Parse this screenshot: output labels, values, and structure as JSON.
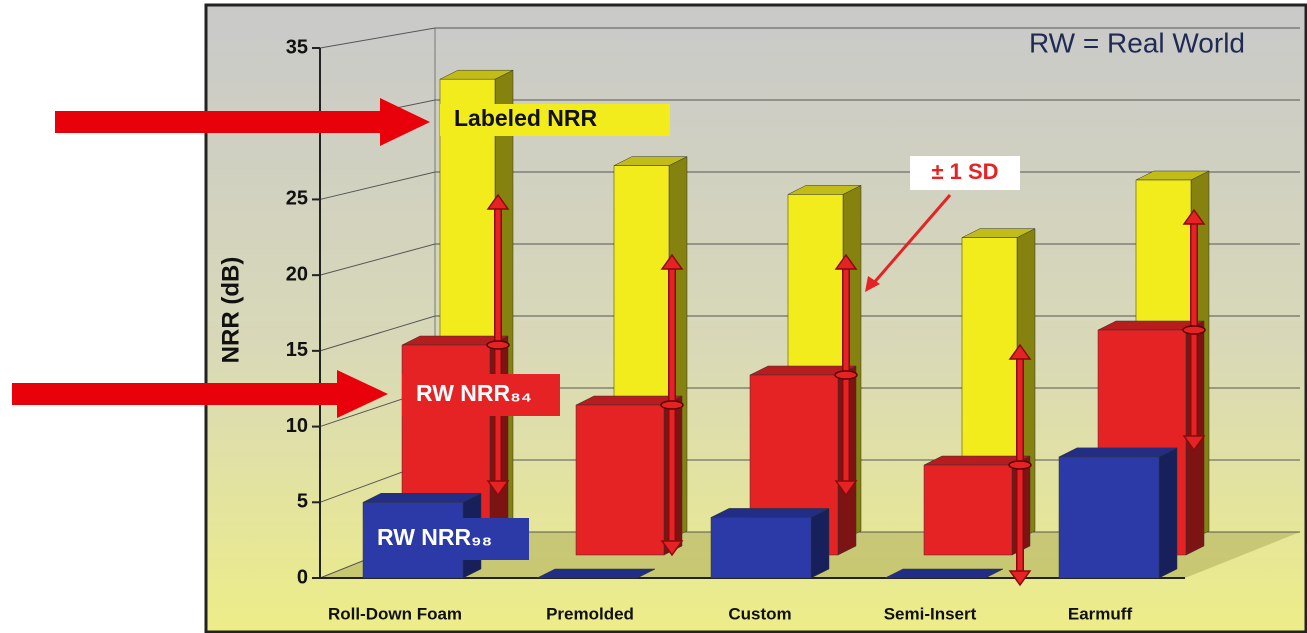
{
  "chart_data": {
    "type": "bar3d",
    "ylabel": "NRR (dB)",
    "categories": [
      "Roll-Down Foam",
      "Premolded",
      "Custom",
      "Semi-Insert",
      "Earmuff"
    ],
    "series": [
      {
        "name": "Labeled NRR",
        "color": "#f2ec1c",
        "values": [
          32,
          26,
          24,
          21,
          25
        ]
      },
      {
        "name": "RW NRR₈₄",
        "color": "#e52325",
        "values": [
          14,
          10,
          12,
          6,
          15
        ],
        "errors": [
          10,
          10,
          8,
          8,
          8
        ]
      },
      {
        "name": "RW NRR₉₈",
        "color": "#2b3aa6",
        "values": [
          5,
          0,
          4,
          0,
          8
        ]
      }
    ],
    "ylim": [
      0,
      35
    ],
    "yticks": [
      0,
      5,
      10,
      15,
      20,
      25,
      30,
      35
    ],
    "grid": true,
    "annotations": [
      "RW = Real World",
      "± 1 SD"
    ]
  }
}
